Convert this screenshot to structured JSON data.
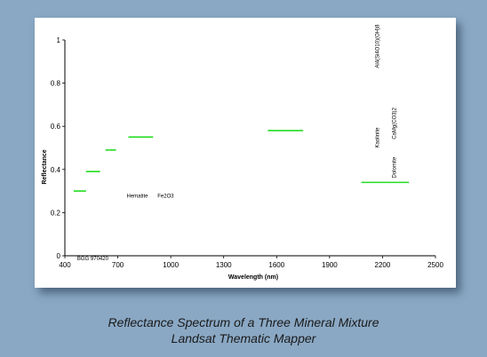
{
  "caption": {
    "line1": "Reflectance Spectrum of a Three Mineral Mixture",
    "line2": "Landsat Thematic Mapper"
  },
  "chart_data": {
    "type": "bar",
    "title": "",
    "xlabel": "Wavelength (nm)",
    "ylabel": "Reflectance",
    "xlim": [
      400,
      2500
    ],
    "ylim": [
      0,
      1
    ],
    "x_ticks": [
      400,
      700,
      1000,
      1300,
      1600,
      1900,
      2200,
      2500
    ],
    "y_ticks": [
      0,
      0.2,
      0.4,
      0.6,
      0.8,
      1
    ],
    "grid": false,
    "line_color": "#22dd22",
    "bands": [
      {
        "x_start": 450,
        "x_end": 520,
        "value": 0.3
      },
      {
        "x_start": 520,
        "x_end": 600,
        "value": 0.39
      },
      {
        "x_start": 630,
        "x_end": 690,
        "value": 0.49
      },
      {
        "x_start": 760,
        "x_end": 900,
        "value": 0.55
      },
      {
        "x_start": 1550,
        "x_end": 1750,
        "value": 0.58
      },
      {
        "x_start": 2080,
        "x_end": 2350,
        "value": 0.34
      }
    ],
    "annotations": [
      {
        "text": "BGG 970420",
        "x": 470,
        "y": -0.02,
        "rotate": 0
      },
      {
        "text": "Hematite",
        "x": 750,
        "y": 0.27,
        "rotate": 0
      },
      {
        "text": "Fe2O3",
        "x": 925,
        "y": 0.27,
        "rotate": 0
      },
      {
        "text": "Kaolinite",
        "x": 2180,
        "y": 0.5,
        "rotate": -90
      },
      {
        "text": "Al4(Si4O10)(OH)8",
        "x": 2180,
        "y": 0.87,
        "rotate": -90
      },
      {
        "text": "Dolomite",
        "x": 2275,
        "y": 0.36,
        "rotate": -90
      },
      {
        "text": "CaMg(CO3)2",
        "x": 2275,
        "y": 0.54,
        "rotate": -90
      }
    ]
  }
}
